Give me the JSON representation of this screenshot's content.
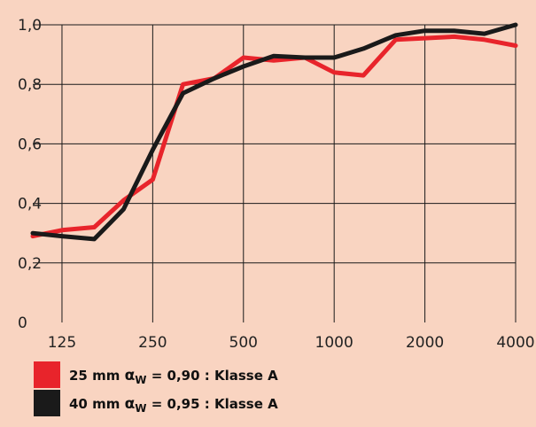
{
  "chart_data": {
    "type": "line",
    "x": [
      100,
      125,
      160,
      200,
      250,
      315,
      400,
      500,
      630,
      800,
      1000,
      1250,
      1600,
      2000,
      2500,
      3150,
      4000
    ],
    "x_tick_labels": [
      "125",
      "250",
      "500",
      "1000",
      "2000",
      "4000"
    ],
    "y_tick_labels": [
      "0",
      "0,2",
      "0,4",
      "0,6",
      "0,8",
      "1,0"
    ],
    "y_tick_values": [
      0,
      0.2,
      0.4,
      0.6,
      0.8,
      1.0
    ],
    "ylim": [
      0,
      1.0
    ],
    "x_scale": "log",
    "grid": true,
    "legend_position": "bottom-left",
    "series": [
      {
        "name": "",
        "legend_prefix": "25 mm ",
        "legend_symbol": "α",
        "legend_subscript": "W",
        "legend_suffix": " = 0,90 : Klasse A",
        "color": "#e8242b",
        "values": [
          0.29,
          0.31,
          0.32,
          0.41,
          0.48,
          0.8,
          0.82,
          0.89,
          0.88,
          0.89,
          0.84,
          0.83,
          0.95,
          0.955,
          0.96,
          0.95,
          0.93
        ]
      },
      {
        "name": "",
        "legend_prefix": "40 mm ",
        "legend_symbol": "α",
        "legend_subscript": "W",
        "legend_suffix": " = 0,95 : Klasse A",
        "color": "#1a1a1a",
        "values": [
          0.3,
          0.29,
          0.28,
          0.38,
          0.58,
          0.77,
          0.82,
          0.86,
          0.895,
          0.89,
          0.89,
          0.92,
          0.965,
          0.98,
          0.98,
          0.97,
          1.0
        ]
      }
    ]
  }
}
